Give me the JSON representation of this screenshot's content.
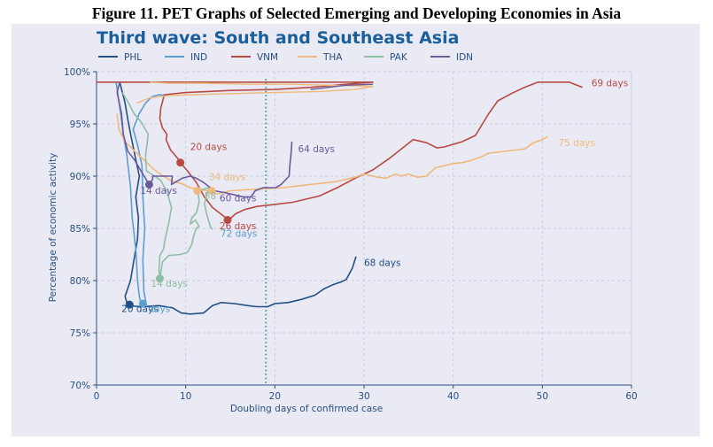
{
  "caption": "Figure 11. PET Graphs of Selected Emerging and Developing Economies in Asia",
  "chart_data": {
    "type": "line",
    "title": "Third wave: South and Southeast Asia",
    "xlabel": "Doubling days of confirmed case",
    "ylabel": "Percentage of economic activity",
    "xlim": [
      0,
      60
    ],
    "ylim": [
      70,
      100
    ],
    "x_ticks": [
      "0",
      "10",
      "20",
      "30",
      "40",
      "50",
      "60"
    ],
    "y_ticks": [
      "70%",
      "75%",
      "80%",
      "85%",
      "90%",
      "95%",
      "100%"
    ],
    "grid": true,
    "legend_position": "top",
    "reference_line": {
      "x": 19,
      "color": "#3a9a8f",
      "style": "dotted"
    },
    "series": [
      {
        "name": "PHL",
        "color": "#214f86",
        "points": [
          [
            2.6,
            99
          ],
          [
            3.2,
            97
          ],
          [
            3.6,
            95
          ],
          [
            4.3,
            92
          ],
          [
            4.8,
            90
          ],
          [
            4.4,
            88
          ],
          [
            4.7,
            86
          ],
          [
            4.6,
            84
          ],
          [
            4.2,
            82
          ],
          [
            3.8,
            80
          ],
          [
            3.2,
            78.5
          ],
          [
            3.5,
            77.6
          ],
          [
            5,
            77.5
          ],
          [
            7,
            77.6
          ],
          [
            8.5,
            77.4
          ],
          [
            9.5,
            76.9
          ],
          [
            10.5,
            76.8
          ],
          [
            12,
            76.9
          ],
          [
            13,
            77.6
          ],
          [
            14,
            77.9
          ],
          [
            15.5,
            77.8
          ],
          [
            17,
            77.6
          ],
          [
            18,
            77.5
          ],
          [
            19.2,
            77.5
          ],
          [
            20,
            77.8
          ],
          [
            21.5,
            77.9
          ],
          [
            23,
            78.2
          ],
          [
            24.5,
            78.6
          ],
          [
            25.5,
            79.2
          ],
          [
            26.5,
            79.6
          ],
          [
            27.5,
            79.9
          ],
          [
            28,
            80.1
          ],
          [
            28.7,
            81.2
          ],
          [
            29.1,
            82.3
          ]
        ],
        "markers": [
          {
            "x": 3.7,
            "y": 77.7,
            "label": "20 days",
            "lx": 2.8,
            "ly": 77
          }
        ],
        "end_label": {
          "text": "68 days",
          "lx": 30,
          "ly": 81.4
        }
      },
      {
        "name": "IND",
        "color": "#5b9ed1",
        "points": [
          [
            2.2,
            99
          ],
          [
            2.7,
            96
          ],
          [
            3,
            94
          ],
          [
            3.4,
            92
          ],
          [
            3.8,
            89
          ],
          [
            4,
            86
          ],
          [
            4.4,
            83
          ],
          [
            4.6,
            80
          ],
          [
            4.8,
            78.5
          ],
          [
            5,
            77.8
          ],
          [
            5.6,
            77.6
          ],
          [
            5.3,
            79
          ],
          [
            5.2,
            82
          ],
          [
            5.4,
            85
          ],
          [
            5.2,
            88
          ],
          [
            5.1,
            91
          ],
          [
            4.6,
            93
          ],
          [
            4.1,
            94.5
          ],
          [
            4.8,
            96
          ],
          [
            5.5,
            97
          ],
          [
            6.2,
            97.6
          ],
          [
            7,
            97.8
          ],
          [
            8,
            97.7
          ]
        ],
        "markers": [
          {
            "x": 5.2,
            "y": 77.8,
            "label": "",
            "lx": 0,
            "ly": 0
          }
        ],
        "end_label": {
          "text": "72 days",
          "lx": 13.9,
          "ly": 84.2
        }
      },
      {
        "name": "VNM",
        "color": "#b84a44",
        "points": [
          [
            0,
            99
          ],
          [
            5,
            99
          ],
          [
            10,
            99
          ],
          [
            15,
            99
          ],
          [
            20,
            99
          ],
          [
            25,
            99
          ],
          [
            30,
            99
          ],
          [
            31,
            99
          ],
          [
            28,
            98.8
          ],
          [
            24,
            98.5
          ],
          [
            20,
            98.3
          ],
          [
            15,
            98.2
          ],
          [
            10,
            98
          ],
          [
            7.6,
            97.8
          ],
          [
            7.2,
            96.5
          ],
          [
            7.1,
            95.5
          ],
          [
            7.4,
            94.6
          ],
          [
            7.9,
            94
          ],
          [
            7.8,
            93.5
          ],
          [
            8.3,
            92.5
          ],
          [
            9.1,
            91.7
          ],
          [
            9.4,
            91.3
          ],
          [
            10.2,
            90.5
          ],
          [
            11.2,
            89.4
          ],
          [
            12.1,
            88
          ],
          [
            13,
            87
          ],
          [
            14.2,
            86.2
          ],
          [
            14.8,
            85.8
          ],
          [
            15.6,
            86.4
          ],
          [
            16.6,
            86.8
          ],
          [
            18,
            87.1
          ],
          [
            20,
            87.3
          ],
          [
            22,
            87.5
          ],
          [
            25,
            88.1
          ],
          [
            27,
            88.9
          ],
          [
            29,
            89.8
          ],
          [
            31,
            90.6
          ],
          [
            33,
            91.8
          ],
          [
            35.5,
            93.5
          ],
          [
            37,
            93.2
          ],
          [
            38.2,
            92.7
          ],
          [
            39,
            92.8
          ],
          [
            41,
            93.3
          ],
          [
            42.5,
            93.9
          ],
          [
            44,
            96
          ],
          [
            45,
            97.2
          ],
          [
            46.5,
            97.9
          ],
          [
            48,
            98.5
          ],
          [
            49.5,
            99
          ],
          [
            53,
            99
          ],
          [
            54.5,
            98.5
          ]
        ],
        "markers": [
          {
            "x": 9.4,
            "y": 91.3,
            "label": "20 days",
            "lx": 10.5,
            "ly": 92.5
          },
          {
            "x": 14.7,
            "y": 85.8,
            "label": "26 days",
            "lx": 13.8,
            "ly": 84.9
          }
        ],
        "end_label": {
          "text": "69 days",
          "lx": 55.5,
          "ly": 98.6
        }
      },
      {
        "name": "THA",
        "color": "#f0b97c",
        "points": [
          [
            2.3,
            96
          ],
          [
            2.5,
            94.5
          ],
          [
            3.2,
            93.3
          ],
          [
            4.5,
            92.2
          ],
          [
            5.5,
            91.4
          ],
          [
            6.5,
            90.6
          ],
          [
            7.5,
            90
          ],
          [
            8.5,
            89.5
          ],
          [
            9.5,
            89.3
          ],
          [
            10.5,
            88.9
          ],
          [
            11.5,
            88.7
          ],
          [
            12.6,
            88.6
          ],
          [
            13.5,
            88.3
          ],
          [
            15,
            88.6
          ],
          [
            17,
            88.7
          ],
          [
            19,
            88.8
          ],
          [
            21,
            88.9
          ],
          [
            23,
            89.1
          ],
          [
            25,
            89.3
          ],
          [
            27,
            89.5
          ],
          [
            29,
            89.9
          ],
          [
            30,
            90.2
          ],
          [
            31.5,
            89.9
          ],
          [
            32.5,
            89.8
          ],
          [
            33.5,
            90.2
          ],
          [
            34.2,
            90
          ],
          [
            35,
            90.2
          ],
          [
            36,
            89.9
          ],
          [
            37,
            90
          ],
          [
            38,
            90.8
          ],
          [
            39,
            91
          ],
          [
            40,
            91.2
          ],
          [
            41,
            91.3
          ],
          [
            42,
            91.5
          ],
          [
            43,
            91.8
          ],
          [
            44,
            92.2
          ],
          [
            47,
            92.5
          ],
          [
            48,
            92.6
          ],
          [
            49,
            93.2
          ],
          [
            50,
            93.5
          ],
          [
            50.6,
            93.8
          ]
        ],
        "extra_points": [
          [
            4.5,
            97
          ],
          [
            6,
            97.5
          ],
          [
            8,
            97.7
          ],
          [
            11,
            97.8
          ],
          [
            15,
            97.9
          ],
          [
            20,
            98
          ],
          [
            25,
            98.1
          ],
          [
            29,
            98.3
          ],
          [
            31,
            98.6
          ],
          [
            26,
            98.7
          ],
          [
            22,
            98.8
          ],
          [
            17,
            98.8
          ],
          [
            12,
            98.9
          ],
          [
            8,
            98.9
          ],
          [
            6,
            99
          ]
        ],
        "markers": [
          {
            "x": 11.3,
            "y": 88.6,
            "label": "",
            "lx": 0,
            "ly": 0
          },
          {
            "x": 12.9,
            "y": 88.6,
            "label": "34 days",
            "lx": 12.6,
            "ly": 89.6
          }
        ],
        "end_label": {
          "text": "75 days",
          "lx": 51.8,
          "ly": 92.9
        }
      },
      {
        "name": "PAK",
        "color": "#8fbea4",
        "points": [
          [
            2.9,
            98
          ],
          [
            3.6,
            97
          ],
          [
            4.2,
            96
          ],
          [
            5,
            95.2
          ],
          [
            5.8,
            94
          ],
          [
            5.5,
            92
          ],
          [
            5.6,
            90.5
          ],
          [
            6.5,
            90
          ],
          [
            7.2,
            89.6
          ],
          [
            7.9,
            88.5
          ],
          [
            8.4,
            87
          ],
          [
            8.1,
            85.5
          ],
          [
            7.7,
            84
          ],
          [
            7.5,
            83
          ],
          [
            7.1,
            82.4
          ],
          [
            7,
            81
          ],
          [
            7.1,
            80.2
          ],
          [
            7.4,
            81.8
          ],
          [
            8.1,
            82.4
          ],
          [
            9.4,
            82.5
          ],
          [
            10.2,
            82.7
          ],
          [
            10.7,
            83.5
          ],
          [
            10.9,
            84.3
          ],
          [
            11.2,
            85
          ],
          [
            11.5,
            85.2
          ],
          [
            11.1,
            85.8
          ],
          [
            10.5,
            85.4
          ],
          [
            10.7,
            86
          ],
          [
            11.2,
            86.5
          ],
          [
            11.5,
            87.5
          ],
          [
            11.4,
            88.5
          ],
          [
            11.8,
            88.7
          ],
          [
            12.6,
            88.9
          ],
          [
            12.1,
            87.4
          ],
          [
            12.4,
            86.2
          ],
          [
            12.8,
            85.1
          ],
          [
            13,
            84.9
          ]
        ],
        "markers": [
          {
            "x": 7.1,
            "y": 80.2,
            "label": "14 days",
            "lx": 6.1,
            "ly": 79.4
          }
        ],
        "end_label": {
          "text": "58",
          "lx": 12.1,
          "ly": 87.8
        }
      },
      {
        "name": "IDN",
        "color": "#6a5a9c",
        "points": [
          [
            2.6,
            99
          ],
          [
            2.3,
            98
          ],
          [
            2.8,
            96
          ],
          [
            3,
            94
          ],
          [
            3.5,
            92.4
          ],
          [
            4.3,
            91.5
          ],
          [
            5.2,
            90.2
          ],
          [
            5.9,
            89.2
          ],
          [
            6.3,
            89.7
          ],
          [
            6.3,
            90
          ],
          [
            8.5,
            90
          ],
          [
            8.4,
            89.2
          ],
          [
            8.8,
            89.4
          ],
          [
            9.6,
            89.8
          ],
          [
            10.5,
            90
          ],
          [
            11.2,
            89.8
          ],
          [
            12,
            89.4
          ],
          [
            13.2,
            88.6
          ],
          [
            14.5,
            88.4
          ],
          [
            15.5,
            88.2
          ],
          [
            16.5,
            88
          ],
          [
            17.3,
            88
          ],
          [
            17.8,
            88.6
          ],
          [
            18.7,
            88.9
          ],
          [
            19.3,
            88.9
          ],
          [
            20.1,
            88.9
          ],
          [
            20.7,
            89.2
          ],
          [
            21.6,
            90
          ],
          [
            21.7,
            91.2
          ],
          [
            21.8,
            92
          ],
          [
            21.9,
            93.3
          ]
        ],
        "extra_points": [
          [
            24,
            98.3
          ],
          [
            26,
            98.5
          ],
          [
            28,
            98.7
          ],
          [
            31,
            98.8
          ]
        ],
        "markers": [
          {
            "x": 5.9,
            "y": 89.2,
            "label": "14 days",
            "lx": 4.9,
            "ly": 88.3
          }
        ],
        "end_label": {
          "text": "64 days",
          "lx": 22.6,
          "ly": 92.3
        }
      }
    ],
    "extra_labels": [
      {
        "text": "60 days",
        "color": "#6a5a9c",
        "lx": 13.8,
        "ly": 87.6
      },
      {
        "text": "days",
        "color": "#5b9ed1",
        "lx": 5.8,
        "ly": 77
      }
    ]
  }
}
